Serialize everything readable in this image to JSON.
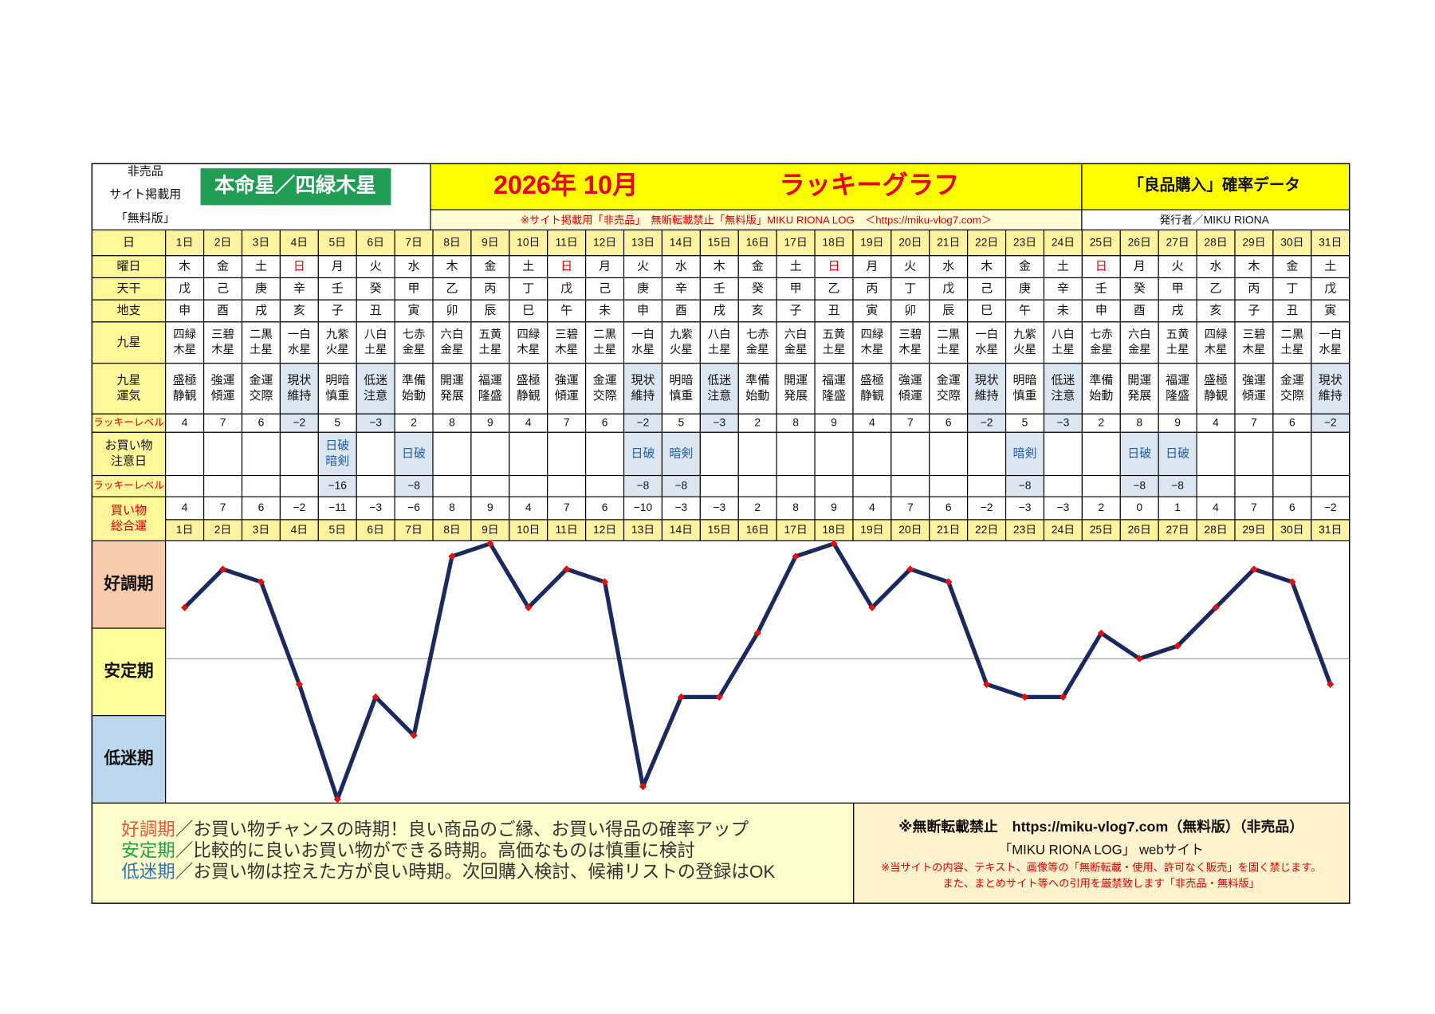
{
  "header": {
    "notes": [
      "非売品",
      "サイト掲載用",
      "「無料版」"
    ],
    "honmei": "本命星／四緑木星",
    "title_date": "2026年 10月",
    "title": "ラッキーグラフ",
    "subtitle": "「良品購入」確率データ",
    "notice": "※サイト掲載用「非売品」　無断転載禁止「無料版」MIKU RIONA LOG　＜https://miku-vlog7.com＞",
    "publisher": "発行者／MIKU RIONA"
  },
  "table": {
    "labels": {
      "day": "日",
      "weekday": "曜日",
      "kan": "天干",
      "shi": "地支",
      "kyusei": "九星",
      "unki": [
        "九星",
        "運気"
      ],
      "lucky": "ラッキーレベル",
      "caution": [
        "お買い物",
        "注意日"
      ],
      "lucky2": "ラッキーレベル",
      "total": [
        "買い物",
        "総合運"
      ]
    },
    "weekdays": {
      "values": [
        "木",
        "金",
        "土",
        "日",
        "月",
        "火",
        "水",
        "木",
        "金",
        "土",
        "日",
        "月",
        "火",
        "水",
        "木",
        "金",
        "土",
        "日",
        "月",
        "火",
        "水",
        "木",
        "金",
        "土",
        "日",
        "月",
        "火",
        "水",
        "木",
        "金",
        "土"
      ],
      "red_days": [
        3,
        10,
        17,
        24
      ],
      "red_color": "#e00000"
    },
    "kan": [
      "戊",
      "己",
      "庚",
      "辛",
      "壬",
      "癸",
      "甲",
      "乙",
      "丙",
      "丁",
      "戊",
      "己",
      "庚",
      "辛",
      "壬",
      "癸",
      "甲",
      "乙",
      "丙",
      "丁",
      "戊",
      "己",
      "庚",
      "辛",
      "壬",
      "癸",
      "甲",
      "乙",
      "丙",
      "丁",
      "戊"
    ],
    "shi": [
      "申",
      "酉",
      "戌",
      "亥",
      "子",
      "丑",
      "寅",
      "卯",
      "辰",
      "巳",
      "午",
      "未",
      "申",
      "酉",
      "戌",
      "亥",
      "子",
      "丑",
      "寅",
      "卯",
      "辰",
      "巳",
      "午",
      "未",
      "申",
      "酉",
      "戌",
      "亥",
      "子",
      "丑",
      "寅"
    ],
    "kyusei": [
      [
        "四緑",
        "木星"
      ],
      [
        "三碧",
        "木星"
      ],
      [
        "二黒",
        "土星"
      ],
      [
        "一白",
        "水星"
      ],
      [
        "九紫",
        "火星"
      ],
      [
        "八白",
        "土星"
      ],
      [
        "七赤",
        "金星"
      ],
      [
        "六白",
        "金星"
      ],
      [
        "五黄",
        "土星"
      ],
      [
        "四緑",
        "木星"
      ],
      [
        "三碧",
        "木星"
      ],
      [
        "二黒",
        "土星"
      ],
      [
        "一白",
        "水星"
      ],
      [
        "九紫",
        "火星"
      ],
      [
        "八白",
        "土星"
      ],
      [
        "七赤",
        "金星"
      ],
      [
        "六白",
        "金星"
      ],
      [
        "五黄",
        "土星"
      ],
      [
        "四緑",
        "木星"
      ],
      [
        "三碧",
        "木星"
      ],
      [
        "二黒",
        "土星"
      ],
      [
        "一白",
        "水星"
      ],
      [
        "九紫",
        "火星"
      ],
      [
        "八白",
        "土星"
      ],
      [
        "七赤",
        "金星"
      ],
      [
        "六白",
        "金星"
      ],
      [
        "五黄",
        "土星"
      ],
      [
        "四緑",
        "木星"
      ],
      [
        "三碧",
        "木星"
      ],
      [
        "二黒",
        "土星"
      ],
      [
        "一白",
        "水星"
      ]
    ],
    "unki": [
      [
        "盛極",
        "静観"
      ],
      [
        "強運",
        "傾運"
      ],
      [
        "金運",
        "交際"
      ],
      [
        "現状",
        "維持"
      ],
      [
        "明暗",
        "慎重"
      ],
      [
        "低迷",
        "注意"
      ],
      [
        "準備",
        "始動"
      ],
      [
        "開運",
        "発展"
      ],
      [
        "福運",
        "隆盛"
      ],
      [
        "盛極",
        "静観"
      ],
      [
        "強運",
        "傾運"
      ],
      [
        "金運",
        "交際"
      ],
      [
        "現状",
        "維持"
      ],
      [
        "明暗",
        "慎重"
      ],
      [
        "低迷",
        "注意"
      ],
      [
        "準備",
        "始動"
      ],
      [
        "開運",
        "発展"
      ],
      [
        "福運",
        "隆盛"
      ],
      [
        "盛極",
        "静観"
      ],
      [
        "強運",
        "傾運"
      ],
      [
        "金運",
        "交際"
      ],
      [
        "現状",
        "維持"
      ],
      [
        "明暗",
        "慎重"
      ],
      [
        "低迷",
        "注意"
      ],
      [
        "準備",
        "始動"
      ],
      [
        "開運",
        "発展"
      ],
      [
        "福運",
        "隆盛"
      ],
      [
        "盛極",
        "静観"
      ],
      [
        "強運",
        "傾運"
      ],
      [
        "金運",
        "交際"
      ],
      [
        "現状",
        "維持"
      ]
    ],
    "lucky_level": {
      "values": [
        4,
        7,
        6,
        -2,
        5,
        -3,
        2,
        8,
        9,
        4,
        7,
        6,
        -2,
        5,
        -3,
        2,
        8,
        9,
        4,
        7,
        6,
        -2,
        5,
        -3,
        2,
        8,
        9,
        4,
        7,
        6,
        -2
      ],
      "value_labels": [
        "4",
        "7",
        "6",
        "−2",
        "5",
        "−3",
        "2",
        "8",
        "9",
        "4",
        "7",
        "6",
        "−2",
        "5",
        "−3",
        "2",
        "8",
        "9",
        "4",
        "7",
        "6",
        "−2",
        "5",
        "−3",
        "2",
        "8",
        "9",
        "4",
        "7",
        "6",
        "−2"
      ]
    },
    "caution": [
      null,
      null,
      null,
      null,
      [
        "日破",
        "暗剣"
      ],
      null,
      [
        "日破"
      ],
      null,
      null,
      null,
      null,
      null,
      [
        "日破"
      ],
      [
        "暗剣"
      ],
      null,
      null,
      null,
      null,
      null,
      null,
      null,
      null,
      [
        "暗剣"
      ],
      null,
      null,
      [
        "日破"
      ],
      [
        "日破"
      ],
      null,
      null,
      null,
      null
    ],
    "lucky_level2": {
      "values": [
        null,
        null,
        null,
        null,
        -16,
        null,
        -8,
        null,
        null,
        null,
        null,
        null,
        -8,
        -8,
        null,
        null,
        null,
        null,
        null,
        null,
        null,
        null,
        -8,
        null,
        null,
        -8,
        -8,
        null,
        null,
        null,
        null
      ],
      "value_labels": [
        null,
        null,
        null,
        null,
        "−16",
        null,
        "−8",
        null,
        null,
        null,
        null,
        null,
        "−8",
        "−8",
        null,
        null,
        null,
        null,
        null,
        null,
        null,
        null,
        "−8",
        null,
        null,
        "−8",
        "−8",
        null,
        null,
        null,
        null
      ]
    },
    "highlight_color": "#dce6f1"
  },
  "chart_data": {
    "type": "line",
    "categories": [
      "1日",
      "2日",
      "3日",
      "4日",
      "5日",
      "6日",
      "7日",
      "8日",
      "9日",
      "10日",
      "11日",
      "12日",
      "13日",
      "14日",
      "15日",
      "16日",
      "17日",
      "18日",
      "19日",
      "20日",
      "21日",
      "22日",
      "23日",
      "24日",
      "25日",
      "26日",
      "27日",
      "28日",
      "29日",
      "30日",
      "31日"
    ],
    "values": [
      4,
      7,
      6,
      -2,
      -11,
      -3,
      -6,
      8,
      9,
      4,
      7,
      6,
      -10,
      -3,
      -3,
      2,
      8,
      9,
      4,
      7,
      6,
      -2,
      -3,
      -3,
      2,
      0,
      1,
      4,
      7,
      6,
      -2
    ],
    "value_labels": [
      "4",
      "7",
      "6",
      "−2",
      "−11",
      "−3",
      "−6",
      "8",
      "9",
      "4",
      "7",
      "6",
      "−10",
      "−3",
      "−3",
      "2",
      "8",
      "9",
      "4",
      "7",
      "6",
      "−2",
      "−3",
      "−3",
      "2",
      "0",
      "1",
      "4",
      "7",
      "6",
      "−2"
    ],
    "color": "#1b2a5e",
    "marker_color": "#e01010",
    "ylim": [
      -11,
      9
    ],
    "yticks": [
      0
    ],
    "grid": true,
    "bands": [
      {
        "name": "好調期",
        "color": "#f8cbad"
      },
      {
        "name": "安定期",
        "color": "#ffff99"
      },
      {
        "name": "低迷期",
        "color": "#bdd7ee"
      }
    ]
  },
  "footer": {
    "legend": [
      {
        "term": "好調期",
        "color": "#f0503c",
        "text": "／お買い物チャンスの時期！良い商品のご縁、お買い得品の確率アップ"
      },
      {
        "term": "安定期",
        "color": "#1fa04a",
        "text": "／比較的に良いお買い物ができる時期。高価なものは慎重に検討"
      },
      {
        "term": "低迷期",
        "color": "#2e75b6",
        "text": "／お買い物は控えた方が良い時期。次回購入検討、候補リストの登録はOK"
      }
    ],
    "copyright": "※無断転載禁止　https://miku-vlog7.com（無料版）（非売品）",
    "site": "「MIKU RIONA LOG」 webサイト",
    "warning1": "※当サイトの内容、テキスト、画像等の「無断転載・使用、許可なく販売」を固く禁じます。",
    "warning2": "また、まとめサイト等への引用を厳禁致します「非売品・無料版」"
  }
}
